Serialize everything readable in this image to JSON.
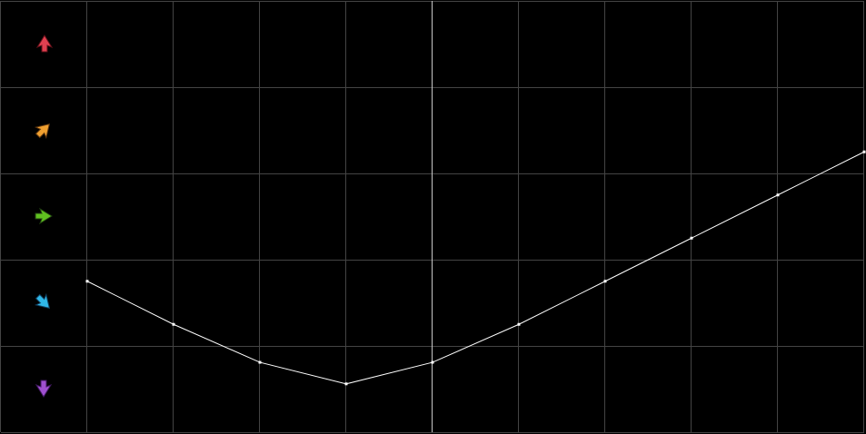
{
  "chart_data": {
    "type": "line",
    "x": [
      1,
      2,
      3,
      4,
      5,
      6,
      7,
      8,
      9,
      10
    ],
    "series": [
      {
        "color": "#ffffff",
        "values": [
          1.75,
          1.25,
          0.81,
          0.56,
          0.81,
          1.25,
          1.75,
          2.25,
          2.75,
          3.25
        ]
      }
    ],
    "xlim": [
      0,
      10
    ],
    "xticks": [
      0,
      1,
      2,
      3,
      4,
      5,
      6,
      7,
      8,
      9,
      10
    ],
    "ylim": [
      0,
      5
    ],
    "yticks": [
      0,
      1,
      2,
      3,
      4,
      5
    ],
    "grid": true,
    "grid_color": "#444444",
    "highlight_x": 5,
    "highlight_color": "#c8c8c8",
    "background": "#000000"
  }
}
